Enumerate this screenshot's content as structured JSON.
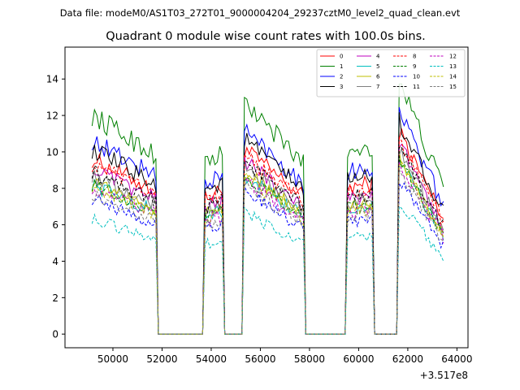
{
  "chart_data": {
    "type": "line",
    "suptitle": "Data file: modeM0/AS1T03_272T01_9000004204_29237cztM0_level2_quad_clean.evt",
    "title": "Quadrant 0 module wise count rates with 100.0s bins.",
    "xlabel": "",
    "ylabel": "",
    "x_offset_label": "+3.517e8",
    "xlim": [
      48050,
      64450
    ],
    "ylim": [
      -0.75,
      15.75
    ],
    "xticks": [
      50000,
      52000,
      54000,
      56000,
      58000,
      60000,
      62000,
      64000
    ],
    "xtick_labels": [
      "50000",
      "52000",
      "54000",
      "56000",
      "58000",
      "60000",
      "62000",
      "64000"
    ],
    "yticks": [
      0,
      2,
      4,
      6,
      8,
      10,
      12,
      14
    ],
    "ytick_labels": [
      "0",
      "2",
      "4",
      "6",
      "8",
      "10",
      "12",
      "14"
    ],
    "legend_position": "top-right",
    "segments": [
      {
        "start": 49150,
        "end": 51750
      },
      {
        "start": 53750,
        "end": 54450
      },
      {
        "start": 55350,
        "end": 57750
      },
      {
        "start": 59550,
        "end": 60550
      },
      {
        "start": 61650,
        "end": 63450
      }
    ],
    "gaps": [
      {
        "start": 51850,
        "end": 53650
      },
      {
        "start": 54550,
        "end": 55250
      },
      {
        "start": 57850,
        "end": 59450
      },
      {
        "start": 60650,
        "end": 61550
      }
    ],
    "segment_shape": {
      "segment_1": {
        "start_value_factor": 1.0,
        "end_value_factor": 0.82
      },
      "segment_2": {
        "start_value_factor": 0.78,
        "end_value_factor": 0.82
      },
      "segment_3": {
        "start_value_factor": 1.06,
        "end_value_factor": 0.78
      },
      "segment_4": {
        "start_value_factor": 0.84,
        "end_value_factor": 0.86
      },
      "segment_5": {
        "start_value_factor": 1.16,
        "end_value_factor": 0.66
      }
    },
    "series": [
      {
        "name": "0",
        "color": "#ff0000",
        "style": "solid",
        "base": 9.6
      },
      {
        "name": "1",
        "color": "#008000",
        "style": "solid",
        "base": 12.0
      },
      {
        "name": "2",
        "color": "#0000ff",
        "style": "solid",
        "base": 10.6
      },
      {
        "name": "3",
        "color": "#000000",
        "style": "solid",
        "base": 10.1
      },
      {
        "name": "4",
        "color": "#bf00bf",
        "style": "solid",
        "base": 9.0
      },
      {
        "name": "5",
        "color": "#00bfbf",
        "style": "solid",
        "base": 8.2
      },
      {
        "name": "6",
        "color": "#bfbf00",
        "style": "solid",
        "base": 8.4
      },
      {
        "name": "7",
        "color": "#808080",
        "style": "solid",
        "base": 8.7
      },
      {
        "name": "8",
        "color": "#ff0000",
        "style": "dashed",
        "base": 9.3
      },
      {
        "name": "9",
        "color": "#008000",
        "style": "dashed",
        "base": 8.2
      },
      {
        "name": "10",
        "color": "#0000ff",
        "style": "dashed",
        "base": 7.4
      },
      {
        "name": "11",
        "color": "#000000",
        "style": "dashed",
        "base": 8.9
      },
      {
        "name": "12",
        "color": "#bf00bf",
        "style": "dashed",
        "base": 8.0
      },
      {
        "name": "13",
        "color": "#00bfbf",
        "style": "dashed",
        "base": 6.3
      },
      {
        "name": "14",
        "color": "#bfbf00",
        "style": "dashed",
        "base": 8.1
      },
      {
        "name": "15",
        "color": "#808080",
        "style": "dashed",
        "base": 7.7
      }
    ]
  }
}
